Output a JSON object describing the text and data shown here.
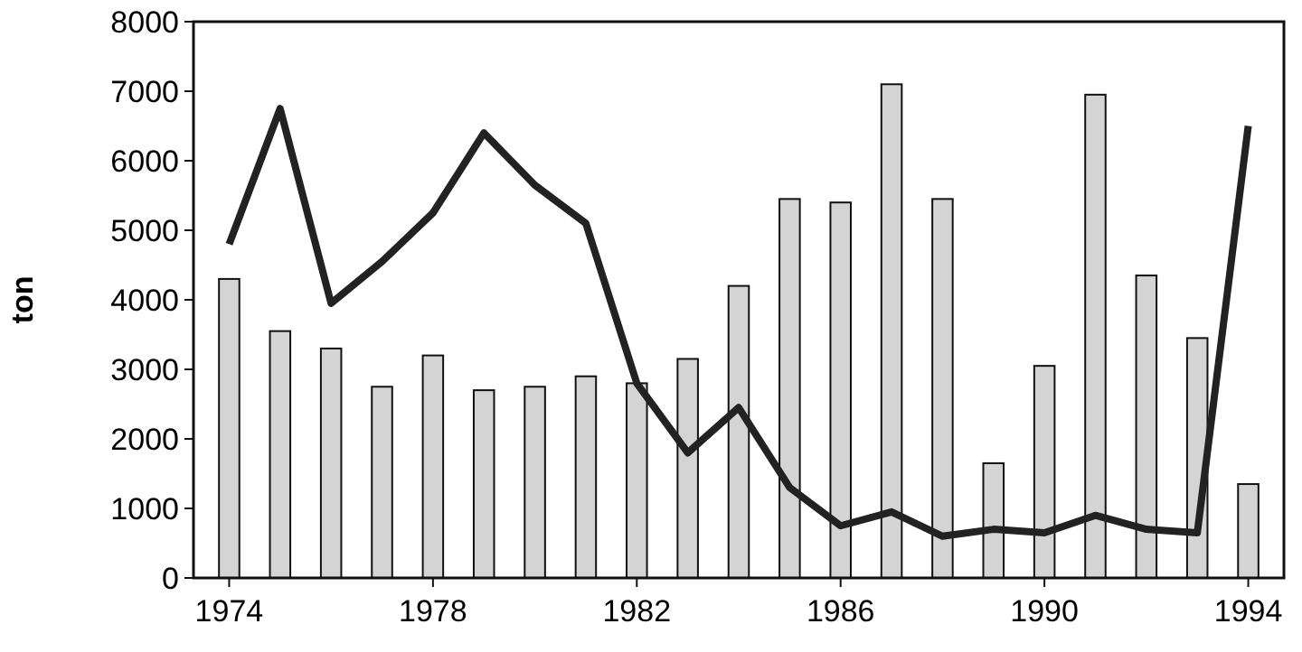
{
  "chart_data": {
    "type": "bar",
    "ylabel": "ton",
    "x": [
      1974,
      1975,
      1976,
      1977,
      1978,
      1979,
      1980,
      1981,
      1982,
      1983,
      1984,
      1985,
      1986,
      1987,
      1988,
      1989,
      1990,
      1991,
      1992,
      1993,
      1994
    ],
    "xlim": [
      1973.3,
      1994.7
    ],
    "xticks": [
      1974,
      1978,
      1982,
      1986,
      1990,
      1994
    ],
    "ylim": [
      0,
      8000
    ],
    "yticks": [
      0,
      1000,
      2000,
      3000,
      4000,
      5000,
      6000,
      7000,
      8000
    ],
    "grid": false,
    "series": [
      {
        "color": "#d4d4d4",
        "values": [
          4300,
          3550,
          3300,
          2750,
          3200,
          2700,
          2750,
          2900,
          2800,
          3150,
          4200,
          5450,
          5400,
          7100,
          5450,
          1650,
          3050,
          6950,
          4350,
          3450,
          1350
        ]
      },
      {
        "type": "line",
        "color": "#222222",
        "values": [
          4800,
          6750,
          3950,
          4550,
          5250,
          6400,
          5650,
          5100,
          2800,
          1800,
          2450,
          1300,
          750,
          950,
          600,
          700,
          650,
          900,
          700,
          650,
          6500
        ]
      }
    ]
  }
}
